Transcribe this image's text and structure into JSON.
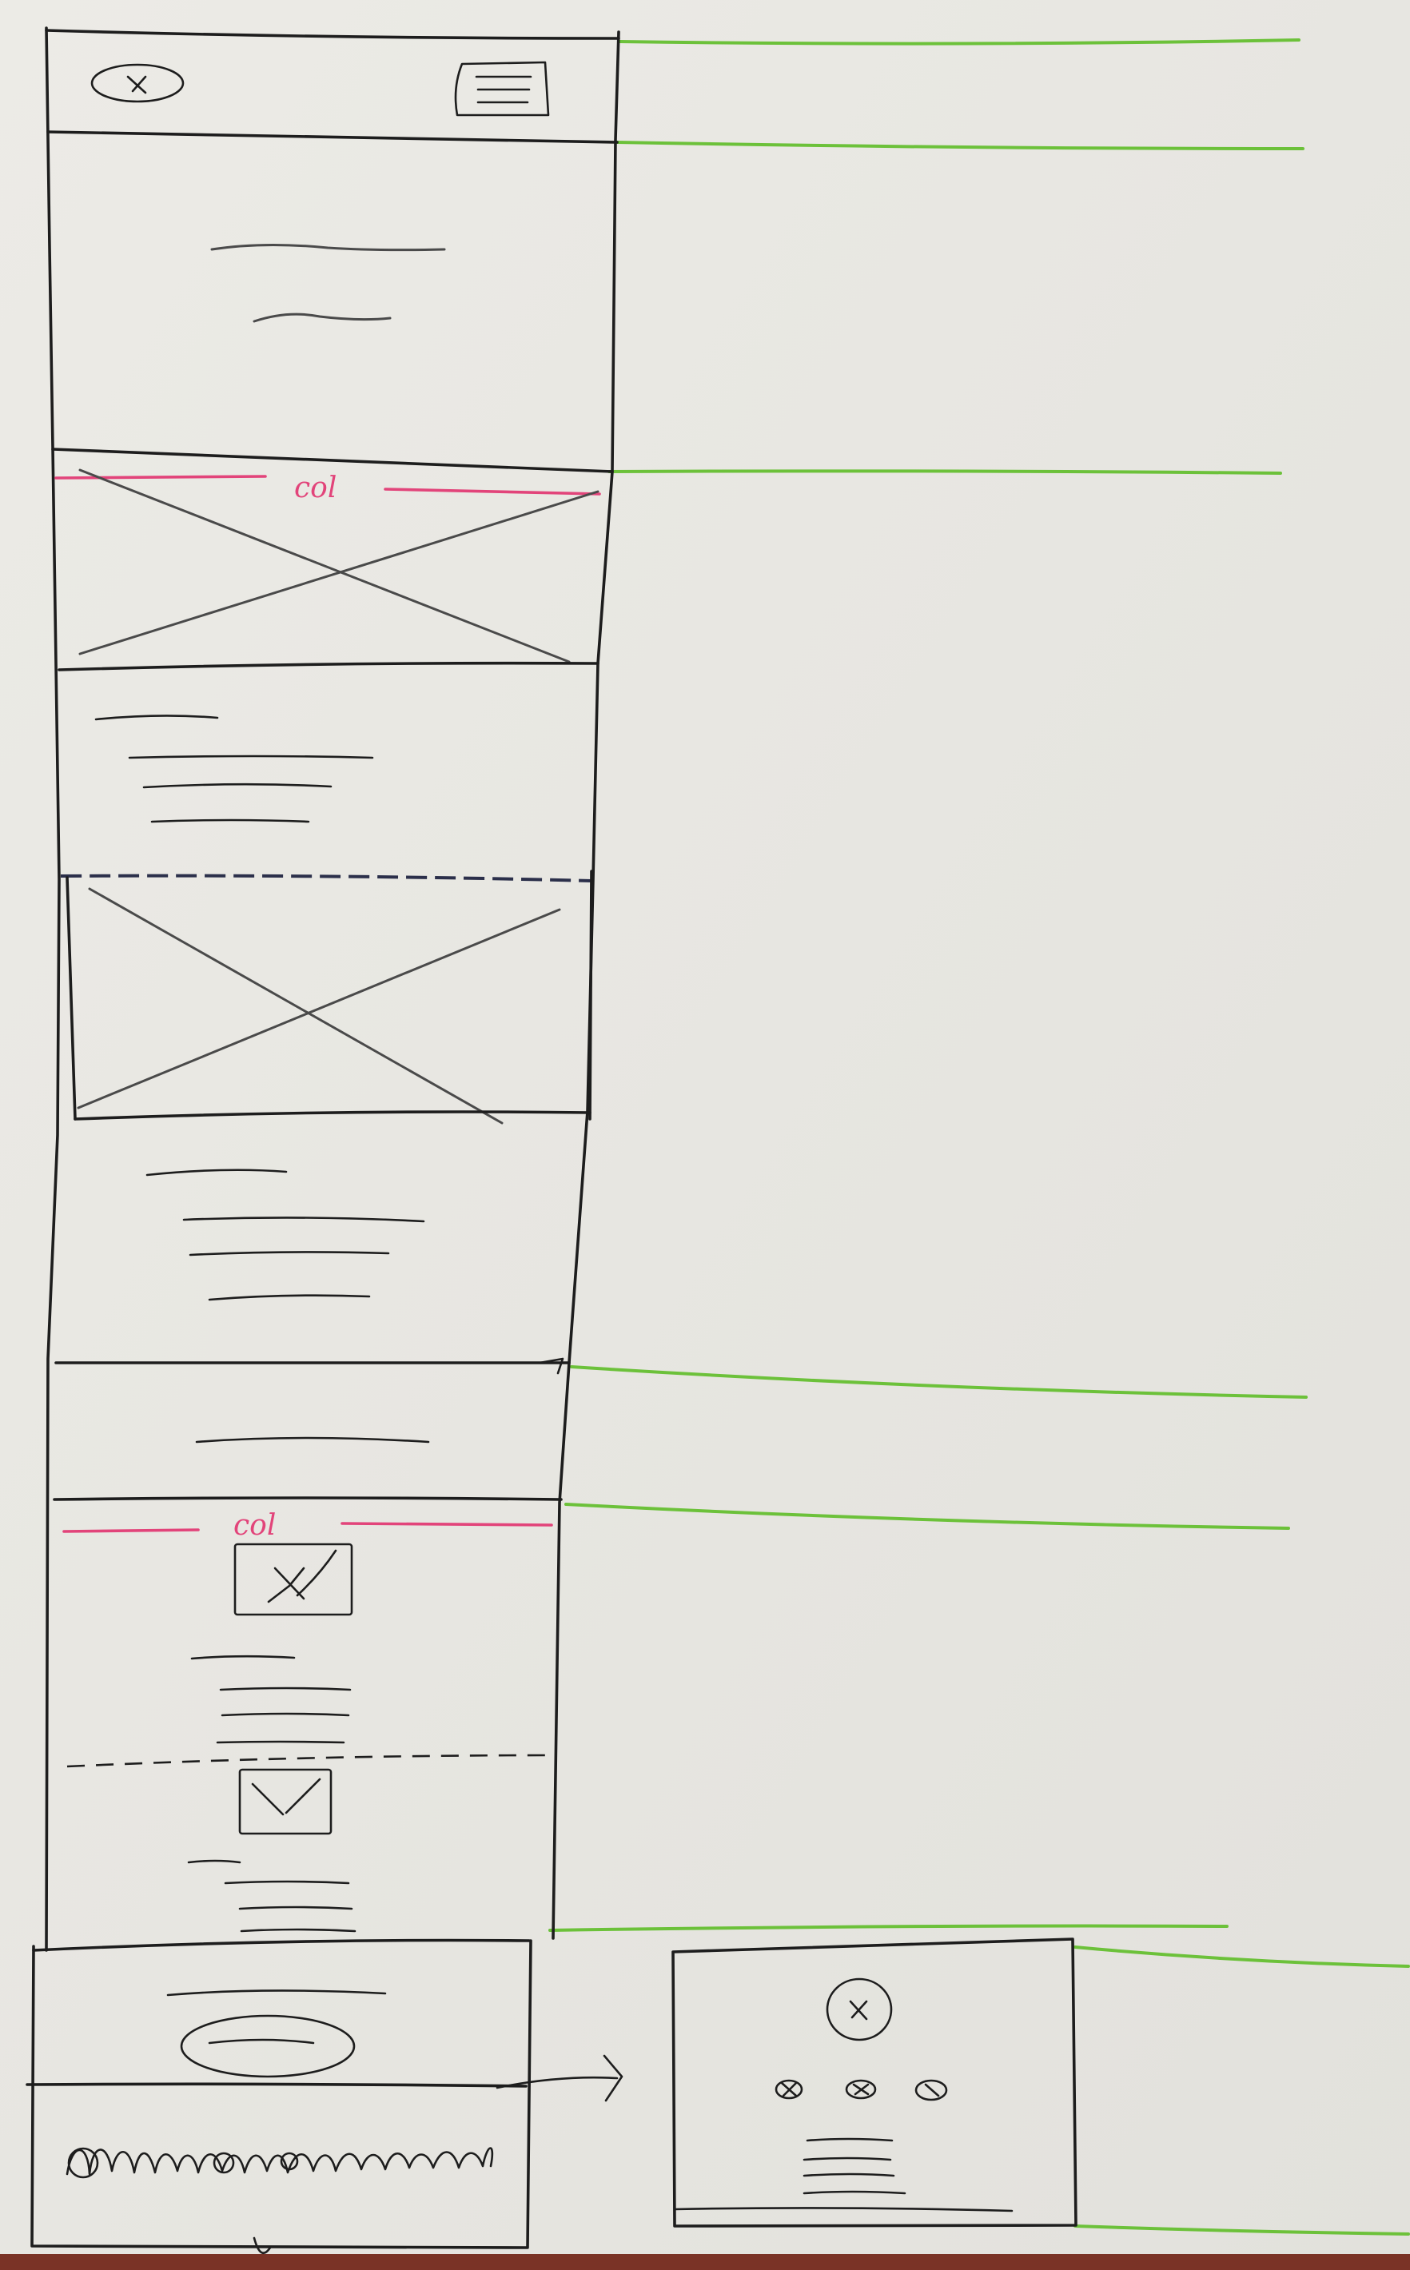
{
  "wireframe": {
    "main_column": {
      "sections": [
        {
          "id": "header",
          "icons": [
            "logo-icon",
            "menu-icon"
          ]
        },
        {
          "id": "hero",
          "content": "text-lines"
        },
        {
          "id": "card-1",
          "label": "col",
          "content": "image-placeholder-and-text"
        },
        {
          "id": "card-2",
          "content": "image-placeholder-and-text"
        },
        {
          "id": "link-bar",
          "content": "single-text-line"
        },
        {
          "id": "list-section",
          "label": "col",
          "content": "two-items-image-and-text"
        },
        {
          "id": "cta",
          "content": "button"
        },
        {
          "id": "footer",
          "content": "scribble-text"
        }
      ]
    },
    "side_panel": {
      "id": "expanded-footer",
      "icons": [
        "logo-icon",
        "social-icon-1",
        "social-icon-2",
        "social-icon-3"
      ]
    }
  },
  "colors": {
    "ink": "#1d1d1d",
    "accent_pink": "#e2447a",
    "guide_green": "#6cc13a",
    "paper": "#e9e8e3"
  }
}
